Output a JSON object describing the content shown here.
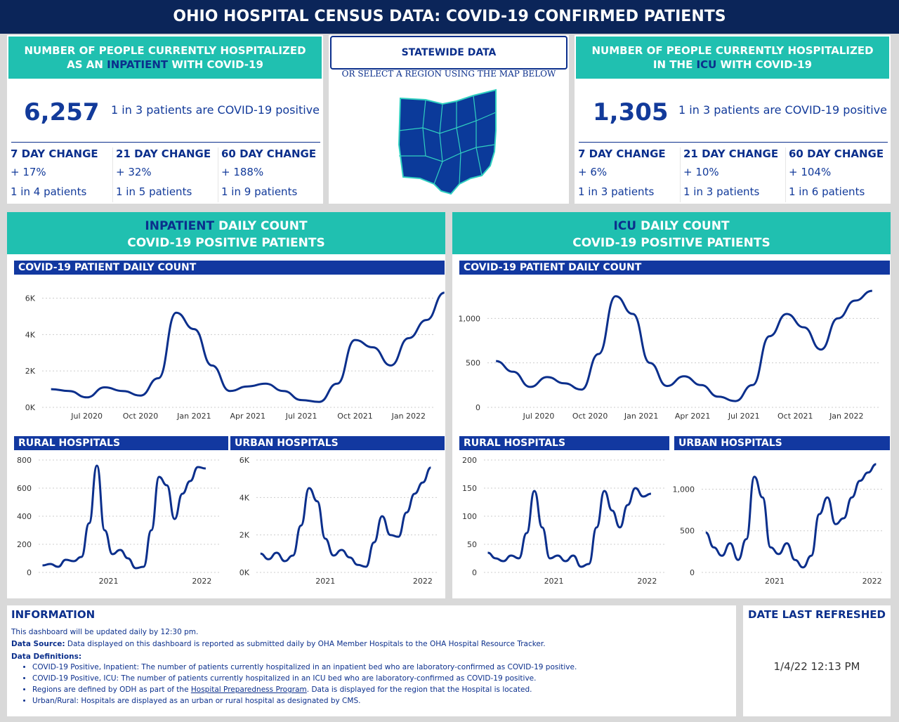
{
  "title": "OHIO HOSPITAL CENSUS DATA: COVID-19 CONFIRMED PATIENTS",
  "inpatient_card": {
    "header_line1": "NUMBER OF PEOPLE CURRENTLY HOSPITALIZED",
    "header_pre": "AS AN ",
    "header_hl": "INPATIENT",
    "header_post": " WITH COVID-19",
    "count": "6,257",
    "ratio": "1 in 3 patients are COVID-19 positive",
    "changes": [
      {
        "label": "7 DAY CHANGE",
        "value": "+ 17%",
        "ratio": "1 in 4 patients"
      },
      {
        "label": "21 DAY CHANGE",
        "value": "+ 32%",
        "ratio": "1 in 5 patients"
      },
      {
        "label": "60 DAY CHANGE",
        "value": "+ 188%",
        "ratio": "1 in 9 patients"
      }
    ]
  },
  "icu_card": {
    "header_line1": "NUMBER OF PEOPLE CURRENTLY HOSPITALIZED",
    "header_pre": "IN THE ",
    "header_hl": "ICU",
    "header_post": " WITH COVID-19",
    "count": "1,305",
    "ratio": "1 in 3 patients are COVID-19 positive",
    "changes": [
      {
        "label": "7 DAY CHANGE",
        "value": "+ 6%",
        "ratio": "1 in 3 patients"
      },
      {
        "label": "21 DAY CHANGE",
        "value": "+ 10%",
        "ratio": "1 in 3 patients"
      },
      {
        "label": "60 DAY CHANGE",
        "value": "+ 104%",
        "ratio": "1 in 6 patients"
      }
    ]
  },
  "statewide": {
    "button": "STATEWIDE DATA",
    "subtitle": "OR SELECT A REGION USING THE MAP BELOW"
  },
  "inpatient_section": {
    "hl": "INPATIENT",
    "title_rest": " DAILY COUNT",
    "line2": "COVID-19 POSITIVE PATIENTS"
  },
  "icu_section": {
    "hl": "ICU",
    "title_rest": " DAILY COUNT",
    "line2": "COVID-19 POSITIVE PATIENTS"
  },
  "labels": {
    "daily_count": "COVID-19 PATIENT DAILY COUNT",
    "rural": "RURAL HOSPITALS",
    "urban": "URBAN HOSPITALS"
  },
  "info": {
    "title": "INFORMATION",
    "line1": "This dashboard will be updated daily by 12:30 pm.",
    "source_label": "Data Source:",
    "source_text": " Data displayed on this dashboard is reported as submitted daily by OHA Member Hospitals to the OHA Hospital Resource Tracker.",
    "defs_label": "Data Definitions:",
    "bullet1": "COVID-19 Positive, Inpatient: The number of patients currently hospitalized in an inpatient bed who are laboratory-confirmed as COVID-19 positive.",
    "bullet2": "COVID-19 Positive, ICU: The number of patients currently hospitalized in an ICU bed who are laboratory-confirmed as COVID-19 positive.",
    "bullet3_pre": "Regions are defined by ODH as part of the ",
    "bullet3_link": "Hospital Preparedness Program",
    "bullet3_post": ". Data is displayed for the region that the Hospital is located.",
    "bullet4": "Urban/Rural: Hospitals are displayed as an urban or rural hospital as designated by CMS."
  },
  "refresh": {
    "title": "DATE LAST REFRESHED",
    "value": "1/4/22 12:13 PM"
  },
  "colors": {
    "navy": "#0b2559",
    "teal": "#20c0b0",
    "line": "#0b2f8c"
  },
  "chart_data": [
    {
      "id": "inpatient_main",
      "type": "line",
      "title": "COVID-19 PATIENT DAILY COUNT",
      "x": [
        0,
        1,
        2,
        3,
        4,
        5,
        6,
        7,
        8,
        9,
        10,
        11,
        12,
        13,
        14,
        15,
        16,
        17,
        18,
        19,
        20,
        21,
        22
      ],
      "values": [
        1000,
        900,
        550,
        1100,
        900,
        650,
        1600,
        5200,
        4300,
        2300,
        900,
        1150,
        1300,
        900,
        400,
        300,
        1300,
        3700,
        3300,
        2300,
        3800,
        4800,
        6300
      ],
      "x_ticks": [
        {
          "x": 2,
          "label": "Jul 2020"
        },
        {
          "x": 5,
          "label": "Oct 2020"
        },
        {
          "x": 8,
          "label": "Jan 2021"
        },
        {
          "x": 11,
          "label": "Apr 2021"
        },
        {
          "x": 14,
          "label": "Jul 2021"
        },
        {
          "x": 17,
          "label": "Oct 2021"
        },
        {
          "x": 20,
          "label": "Jan 2022"
        }
      ],
      "y_ticks": [
        0,
        2000,
        4000,
        6000
      ],
      "y_labels": [
        "0K",
        "2K",
        "4K",
        "6K"
      ],
      "xlim": [
        -0.5,
        21.5
      ],
      "ylim": [
        0,
        6600
      ]
    },
    {
      "id": "icu_main",
      "type": "line",
      "title": "COVID-19 PATIENT DAILY COUNT",
      "x": [
        0,
        1,
        2,
        3,
        4,
        5,
        6,
        7,
        8,
        9,
        10,
        11,
        12,
        13,
        14,
        15,
        16,
        17,
        18,
        19,
        20,
        21,
        22
      ],
      "values": [
        520,
        400,
        230,
        340,
        270,
        200,
        600,
        1250,
        1050,
        500,
        240,
        350,
        250,
        120,
        70,
        250,
        800,
        1050,
        900,
        650,
        1000,
        1200,
        1310
      ],
      "x_ticks": [
        {
          "x": 2.5,
          "label": "Jul 2020"
        },
        {
          "x": 5.5,
          "label": "Oct 2020"
        },
        {
          "x": 8.5,
          "label": "Jan 2021"
        },
        {
          "x": 11.5,
          "label": "Apr 2021"
        },
        {
          "x": 14.5,
          "label": "Jul 2021"
        },
        {
          "x": 17.5,
          "label": "Oct 2021"
        },
        {
          "x": 20.5,
          "label": "Jan 2022"
        }
      ],
      "y_ticks": [
        0,
        500,
        1000
      ],
      "y_labels": [
        "0",
        "500",
        "1,000"
      ],
      "xlim": [
        -0.5,
        22.5
      ],
      "ylim": [
        0,
        1350
      ]
    },
    {
      "id": "inpatient_rural",
      "type": "line",
      "title": "RURAL HOSPITALS",
      "x": [
        0,
        1,
        2,
        3,
        4,
        5,
        6,
        7,
        8,
        9,
        10,
        11,
        12,
        13,
        14,
        15,
        16,
        17,
        18,
        19,
        20,
        21
      ],
      "values": [
        50,
        60,
        40,
        90,
        80,
        110,
        350,
        760,
        300,
        130,
        160,
        100,
        30,
        40,
        300,
        680,
        620,
        380,
        560,
        650,
        750,
        740
      ],
      "x_ticks": [
        {
          "x": 8.5,
          "label": "2021"
        },
        {
          "x": 20.5,
          "label": "2022"
        }
      ],
      "y_ticks": [
        0,
        200,
        400,
        600,
        800
      ],
      "y_labels": [
        "0",
        "200",
        "400",
        "600",
        "800"
      ],
      "xlim": [
        -0.5,
        23
      ],
      "ylim": [
        0,
        800
      ]
    },
    {
      "id": "inpatient_urban",
      "type": "line",
      "title": "URBAN HOSPITALS",
      "x": [
        0,
        1,
        2,
        3,
        4,
        5,
        6,
        7,
        8,
        9,
        10,
        11,
        12,
        13,
        14,
        15,
        16,
        17,
        18,
        19,
        20,
        21
      ],
      "values": [
        1000,
        700,
        1050,
        600,
        900,
        2500,
        4500,
        3800,
        1800,
        900,
        1200,
        800,
        400,
        300,
        1600,
        3000,
        2000,
        1900,
        3200,
        4200,
        4800,
        5600
      ],
      "x_ticks": [
        {
          "x": 8,
          "label": "2021"
        },
        {
          "x": 20,
          "label": "2022"
        }
      ],
      "y_ticks": [
        0,
        2000,
        4000,
        6000
      ],
      "y_labels": [
        "0K",
        "2K",
        "4K",
        "6K"
      ],
      "xlim": [
        -0.5,
        22
      ],
      "ylim": [
        0,
        6000
      ]
    },
    {
      "id": "icu_rural",
      "type": "line",
      "title": "RURAL HOSPITALS",
      "x": [
        0,
        1,
        2,
        3,
        4,
        5,
        6,
        7,
        8,
        9,
        10,
        11,
        12,
        13,
        14,
        15,
        16,
        17,
        18,
        19,
        20,
        21
      ],
      "values": [
        35,
        25,
        20,
        30,
        25,
        70,
        145,
        80,
        25,
        30,
        20,
        30,
        10,
        15,
        80,
        145,
        110,
        80,
        120,
        150,
        135,
        140
      ],
      "x_ticks": [
        {
          "x": 8.5,
          "label": "2021"
        },
        {
          "x": 20.5,
          "label": "2022"
        }
      ],
      "y_ticks": [
        0,
        50,
        100,
        150,
        200
      ],
      "y_labels": [
        "0",
        "50",
        "100",
        "150",
        "200"
      ],
      "xlim": [
        -0.5,
        23
      ],
      "ylim": [
        0,
        200
      ]
    },
    {
      "id": "icu_urban",
      "type": "line",
      "title": "URBAN HOSPITALS",
      "x": [
        0,
        1,
        2,
        3,
        4,
        5,
        6,
        7,
        8,
        9,
        10,
        11,
        12,
        13,
        14,
        15,
        16,
        17,
        18,
        19,
        20,
        21
      ],
      "values": [
        480,
        300,
        200,
        350,
        150,
        400,
        1150,
        900,
        300,
        220,
        350,
        150,
        60,
        200,
        700,
        900,
        580,
        650,
        900,
        1100,
        1200,
        1300
      ],
      "x_ticks": [
        {
          "x": 8.5,
          "label": "2021"
        },
        {
          "x": 20.5,
          "label": "2022"
        }
      ],
      "y_ticks": [
        0,
        500,
        1000
      ],
      "y_labels": [
        "0",
        "500",
        "1,000"
      ],
      "xlim": [
        -0.5,
        22
      ],
      "ylim": [
        0,
        1350
      ]
    }
  ]
}
